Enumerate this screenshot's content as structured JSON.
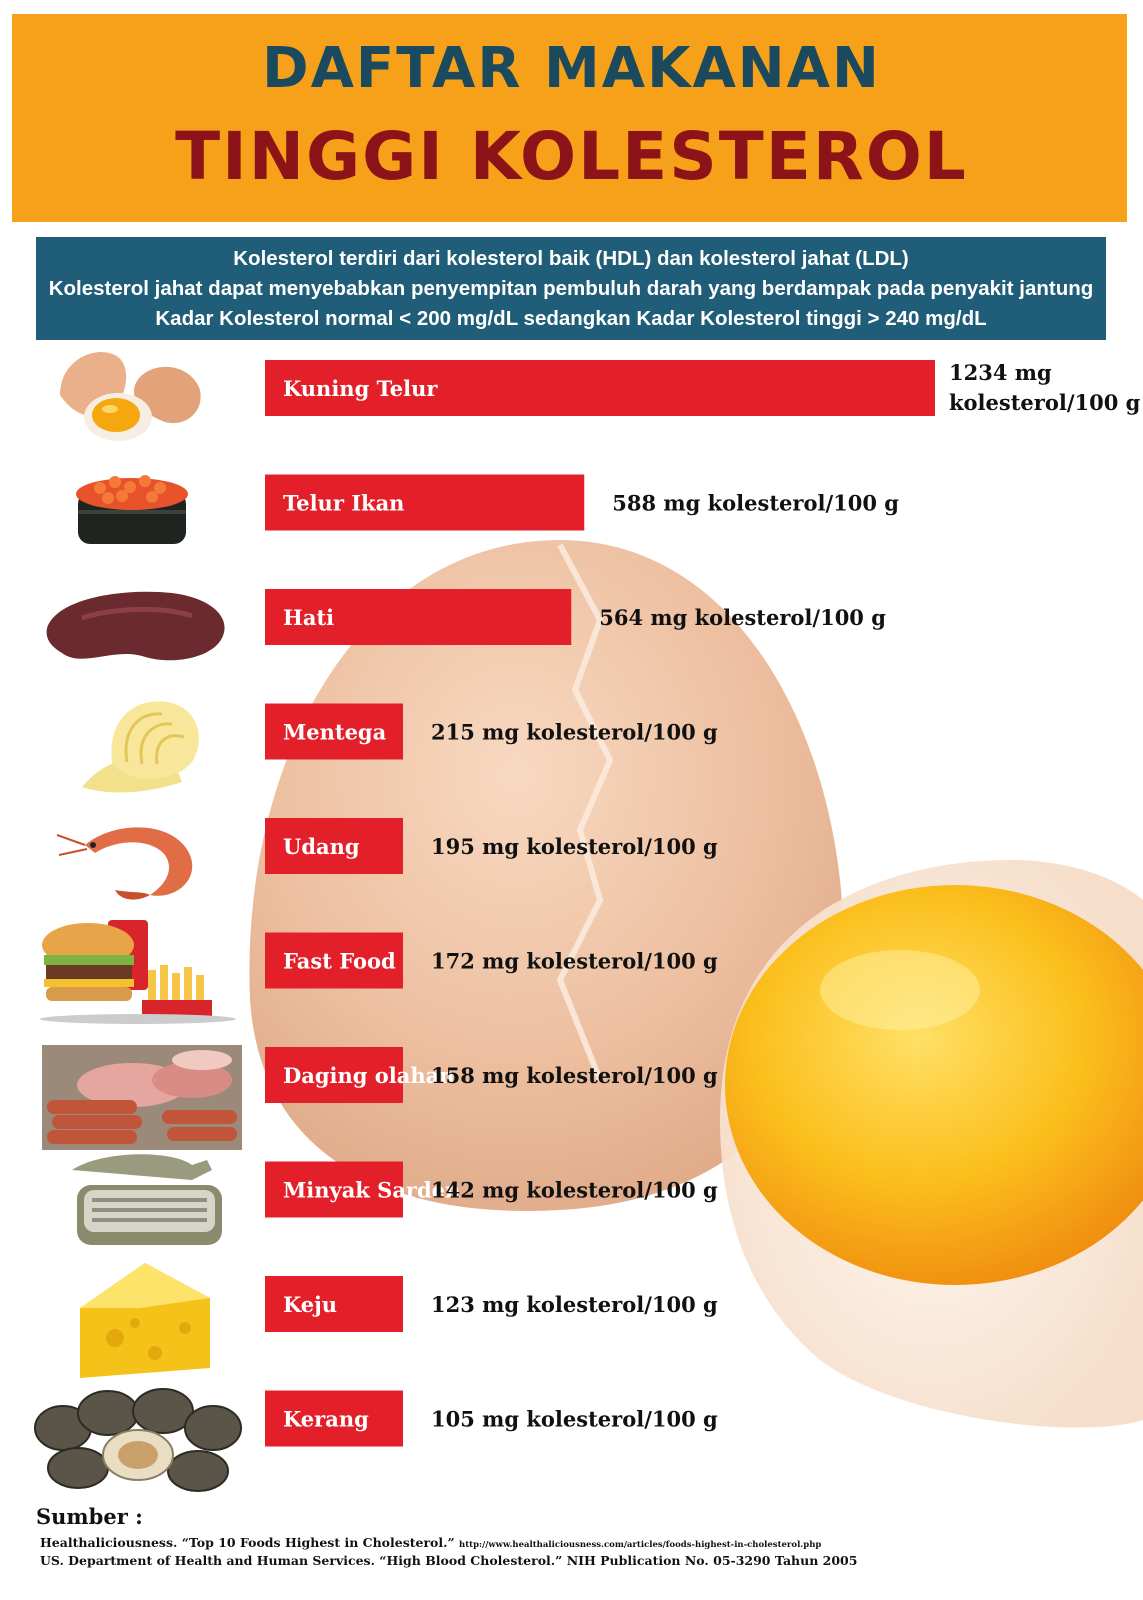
{
  "header": {
    "title_line1": "DAFTAR MAKANAN",
    "title_line2": "TINGGI KOLESTEROL"
  },
  "info": {
    "line1": "Kolesterol terdiri dari kolesterol baik (HDL) dan kolesterol jahat (LDL)",
    "line2": "Kolesterol jahat dapat menyebabkan penyempitan pembuluh darah yang berdampak pada penyakit jantung",
    "line3": "Kadar Kolesterol normal < 200 mg/dL  sedangkan Kadar Kolesterol tinggi > 240 mg/dL"
  },
  "colors": {
    "banner": "#f7a11a",
    "title_line1": "#1b4a5e",
    "title_line2": "#8c1418",
    "info_box": "#1f5d78",
    "bar": "#e3202a"
  },
  "chart_data": {
    "type": "bar",
    "orientation": "horizontal",
    "categories": [
      "Kuning Telur",
      "Telur Ikan",
      "Hati",
      "Mentega",
      "Udang",
      "Fast Food",
      "Daging olahan",
      "Minyak Sarden",
      "Keju",
      "Kerang"
    ],
    "values": [
      1234,
      588,
      564,
      215,
      195,
      172,
      158,
      142,
      123,
      105
    ],
    "unit": "mg kolesterol/100 g",
    "value_labels": [
      "1234 mg kolesterol/100 g",
      "588 mg kolesterol/100 g",
      "564 mg kolesterol/100 g",
      "215 mg kolesterol/100 g",
      "195 mg kolesterol/100 g",
      "172 mg kolesterol/100 g",
      "158 mg kolesterol/100 g",
      "142 mg kolesterol/100 g",
      "123 mg kolesterol/100 g",
      "105 mg kolesterol/100 g"
    ],
    "icons": [
      "egg-icon",
      "fish-roe-sushi-icon",
      "liver-icon",
      "butter-icon",
      "shrimp-icon",
      "fast-food-icon",
      "processed-meat-icon",
      "sardine-can-icon",
      "cheese-icon",
      "clam-icon"
    ],
    "grid": false,
    "legend": "none"
  },
  "sources": {
    "heading": "Sumber :",
    "line1_text": "Healthaliciousness. “Top 10 Foods Highest in Cholesterol.”",
    "line1_url": "http://www.healthaliciousness.com/articles/foods-highest-in-cholesterol.php",
    "line2": "US. Department of Health and Human Services. “High Blood Cholesterol.” NIH Publication No. 05-3290 Tahun 2005"
  }
}
